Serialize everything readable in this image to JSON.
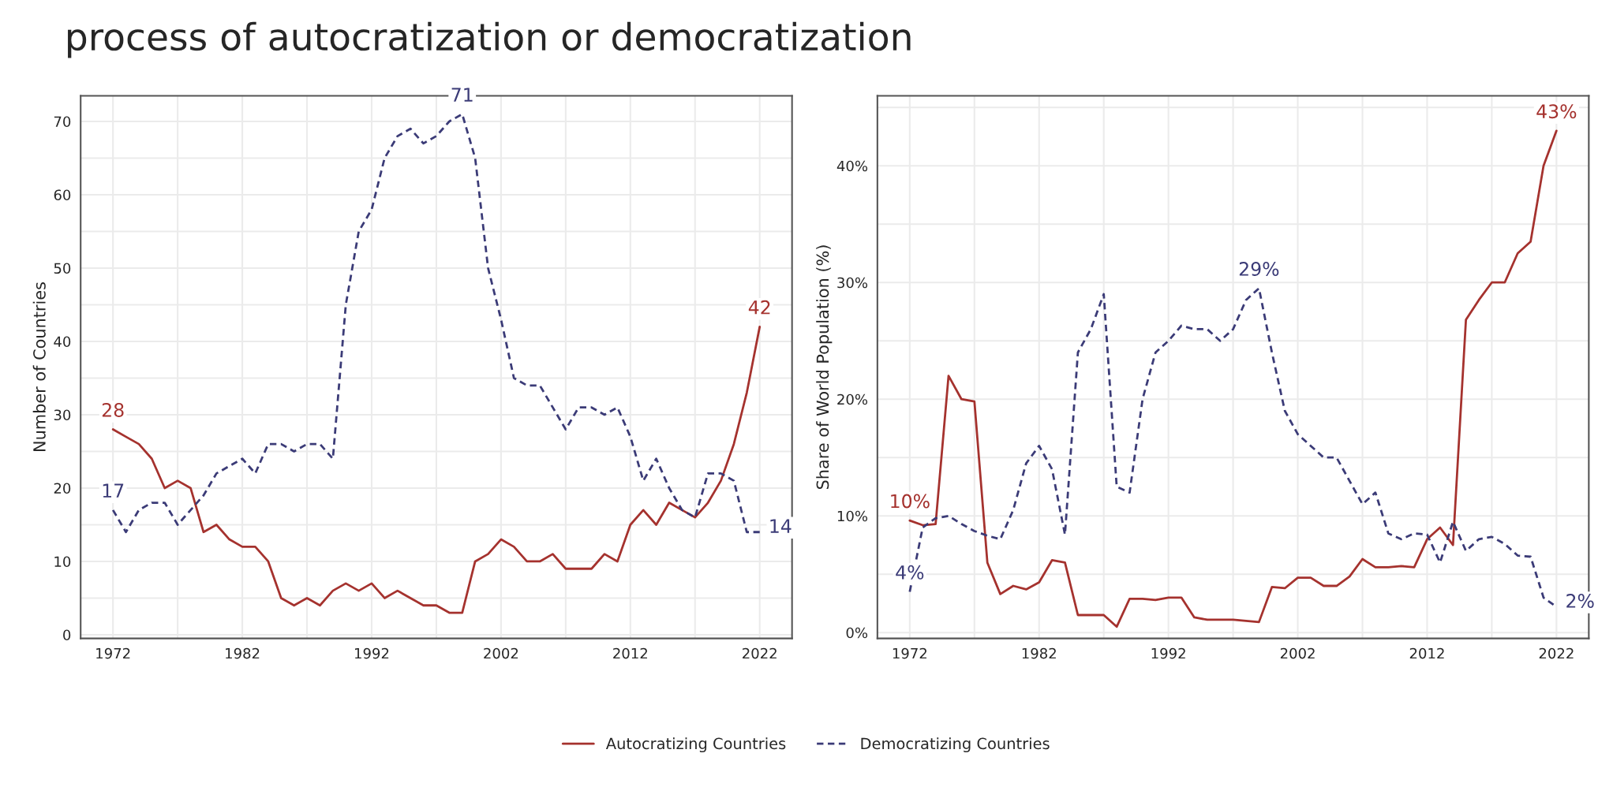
{
  "chart_data": [
    {
      "type": "line",
      "title": "process of autocratization or democratization",
      "ylabel": "Number of Countries",
      "x": [
        1972,
        1973,
        1974,
        1975,
        1976,
        1977,
        1978,
        1979,
        1980,
        1981,
        1982,
        1983,
        1984,
        1985,
        1986,
        1987,
        1988,
        1989,
        1990,
        1991,
        1992,
        1993,
        1994,
        1995,
        1996,
        1997,
        1998,
        1999,
        2000,
        2001,
        2002,
        2003,
        2004,
        2005,
        2006,
        2007,
        2008,
        2009,
        2010,
        2011,
        2012,
        2013,
        2014,
        2015,
        2016,
        2017,
        2018,
        2019,
        2020,
        2021,
        2022
      ],
      "series": [
        {
          "name": "Autocratizing Countries",
          "color": "#a5322e",
          "line_style": "solid",
          "values": [
            28,
            27,
            26,
            24,
            20,
            21,
            20,
            14,
            15,
            13,
            12,
            12,
            10,
            5,
            4,
            5,
            4,
            6,
            7,
            6,
            7,
            5,
            6,
            5,
            4,
            4,
            3,
            3,
            10,
            11,
            13,
            12,
            10,
            10,
            11,
            9,
            9,
            9,
            11,
            10,
            15,
            17,
            15,
            18,
            17,
            16,
            18,
            21,
            26,
            33,
            42
          ]
        },
        {
          "name": "Democratizing Countries",
          "color": "#3b3b77",
          "line_style": "dashed",
          "values": [
            17,
            14,
            17,
            18,
            18,
            15,
            17,
            19,
            22,
            23,
            24,
            22,
            26,
            26,
            25,
            26,
            26,
            24,
            45,
            55,
            58,
            65,
            68,
            69,
            67,
            68,
            70,
            71,
            65,
            50,
            43,
            35,
            34,
            34,
            31,
            28,
            31,
            31,
            30,
            31,
            27,
            21,
            24,
            20,
            17,
            16,
            22,
            22,
            21,
            14,
            14
          ]
        }
      ],
      "xlim": [
        1969.5,
        2024.5
      ],
      "xticks": [
        1972,
        1982,
        1992,
        2002,
        2012,
        2022
      ],
      "ylim": [
        -0.5,
        73.5
      ],
      "yticks": [
        0,
        10,
        20,
        30,
        40,
        50,
        60,
        70
      ],
      "grid": true,
      "legend": "bottom",
      "annotations": [
        {
          "text": "28",
          "x": 1972,
          "y": 28
        },
        {
          "text": "17",
          "x": 1972,
          "y": 17
        },
        {
          "text": "71",
          "x": 1999,
          "y": 71
        },
        {
          "text": "42",
          "x": 2022,
          "y": 42
        },
        {
          "text": "14",
          "x": 2022,
          "y": 14
        }
      ]
    },
    {
      "type": "line",
      "ylabel": "Share of World Population (%)",
      "x": [
        1972,
        1973,
        1974,
        1975,
        1976,
        1977,
        1978,
        1979,
        1980,
        1981,
        1982,
        1983,
        1984,
        1985,
        1986,
        1987,
        1988,
        1989,
        1990,
        1991,
        1992,
        1993,
        1994,
        1995,
        1996,
        1997,
        1998,
        1999,
        2000,
        2001,
        2002,
        2003,
        2004,
        2005,
        2006,
        2007,
        2008,
        2009,
        2010,
        2011,
        2012,
        2013,
        2014,
        2015,
        2016,
        2017,
        2018,
        2019,
        2020,
        2021,
        2022
      ],
      "series": [
        {
          "color": "#a5322e",
          "line_style": "solid",
          "values": [
            9.6,
            9.2,
            9.3,
            22,
            20,
            19.8,
            6,
            3.3,
            4,
            3.7,
            4.3,
            6.2,
            6,
            1.5,
            1.5,
            1.5,
            0.5,
            2.9,
            2.9,
            2.8,
            3,
            3,
            1.3,
            1.1,
            1.1,
            1.1,
            1,
            0.9,
            3.9,
            3.8,
            4.7,
            4.7,
            4,
            4,
            4.8,
            6.3,
            5.6,
            5.6,
            5.7,
            5.6,
            8,
            9,
            7.5,
            26.8,
            28.5,
            30,
            30,
            32.5,
            33.5,
            40,
            43
          ]
        },
        {
          "color": "#3b3b77",
          "line_style": "dashed",
          "values": [
            3.5,
            9,
            9.8,
            10,
            9.3,
            8.7,
            8.3,
            8,
            10.5,
            14.5,
            16,
            14,
            8.4,
            24,
            26,
            29,
            12.5,
            12,
            20,
            24,
            25,
            26.3,
            26,
            26,
            25,
            26,
            28.5,
            29.5,
            24,
            19,
            17,
            16,
            15,
            15,
            13,
            11,
            12,
            8.5,
            8,
            8.5,
            8.4,
            6,
            9.5,
            7,
            8,
            8.2,
            7.6,
            6.6,
            6.5,
            3,
            2.2
          ]
        }
      ],
      "xlim": [
        1969.5,
        2024.5
      ],
      "xticks": [
        1972,
        1982,
        1992,
        2002,
        2012,
        2022
      ],
      "ylim": [
        -0.5,
        46
      ],
      "yticks": [
        {
          "value": 0,
          "label": "0%"
        },
        {
          "value": 10,
          "label": "10%"
        },
        {
          "value": 20,
          "label": "20%"
        },
        {
          "value": 30,
          "label": "30%"
        },
        {
          "value": 40,
          "label": "40%"
        }
      ],
      "grid": true,
      "annotations": [
        {
          "text": "10%",
          "x": 1972,
          "y": 9.6
        },
        {
          "text": "4%",
          "x": 1972,
          "y": 3.5
        },
        {
          "text": "29%",
          "x": 1999,
          "y": 29.5
        },
        {
          "text": "43%",
          "x": 2022,
          "y": 43
        },
        {
          "text": "2%",
          "x": 2022,
          "y": 2.2
        }
      ]
    }
  ]
}
